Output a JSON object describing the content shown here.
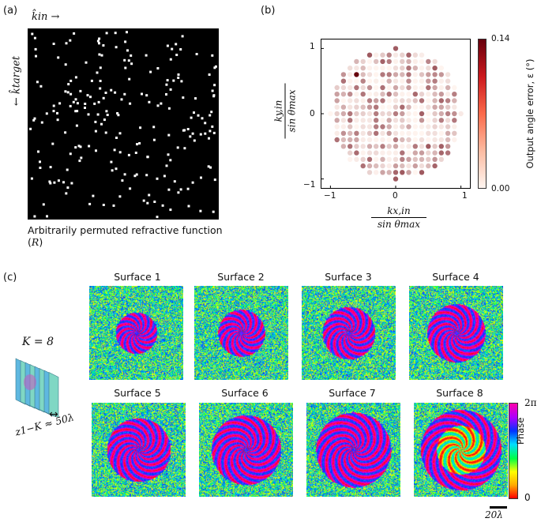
{
  "panels": {
    "a": {
      "label": "(a)",
      "x_arrow_label": "k̂in →",
      "y_arrow_label": "← k̂target",
      "caption_prefix": "Arbitrarily permuted refractive function (",
      "caption_symbol": "R",
      "caption_suffix": ")"
    },
    "b": {
      "label": "(b)",
      "colorbar": {
        "title": "Output angle error, ε (°)",
        "max_label": "0.14",
        "min_label": "0.00",
        "low_color": "#fff5f0",
        "high_color": "#67000d"
      },
      "chart_data": {
        "type": "scatter",
        "xlabel": "kx,in / sin θmax",
        "ylabel": "ky,in / sin θmax",
        "xlim": [
          -1.15,
          1.15
        ],
        "ylim": [
          -1.15,
          1.15
        ],
        "x_ticks": [
          "−1",
          "0",
          "1"
        ],
        "y_ticks": [
          "−1",
          "0",
          "1"
        ],
        "grid": false,
        "color_range": [
          0,
          0.14
        ]
      },
      "xlabel_num": "kx,in",
      "xlabel_den": "sin θmax",
      "ylabel_num": "ky,in",
      "ylabel_den": "sin θmax"
    },
    "c": {
      "label": "(c)",
      "k_label": "K = 8",
      "spacing_label": "z1−K ≈ 50λ",
      "surfaces": [
        "Surface 1",
        "Surface 2",
        "Surface 3",
        "Surface 4",
        "Surface 5",
        "Surface 6",
        "Surface 7",
        "Surface 8"
      ],
      "colorbar": {
        "title": "Phase",
        "max_label": "2π",
        "min_label": "0"
      },
      "scale_bar_label": "20λ"
    }
  }
}
